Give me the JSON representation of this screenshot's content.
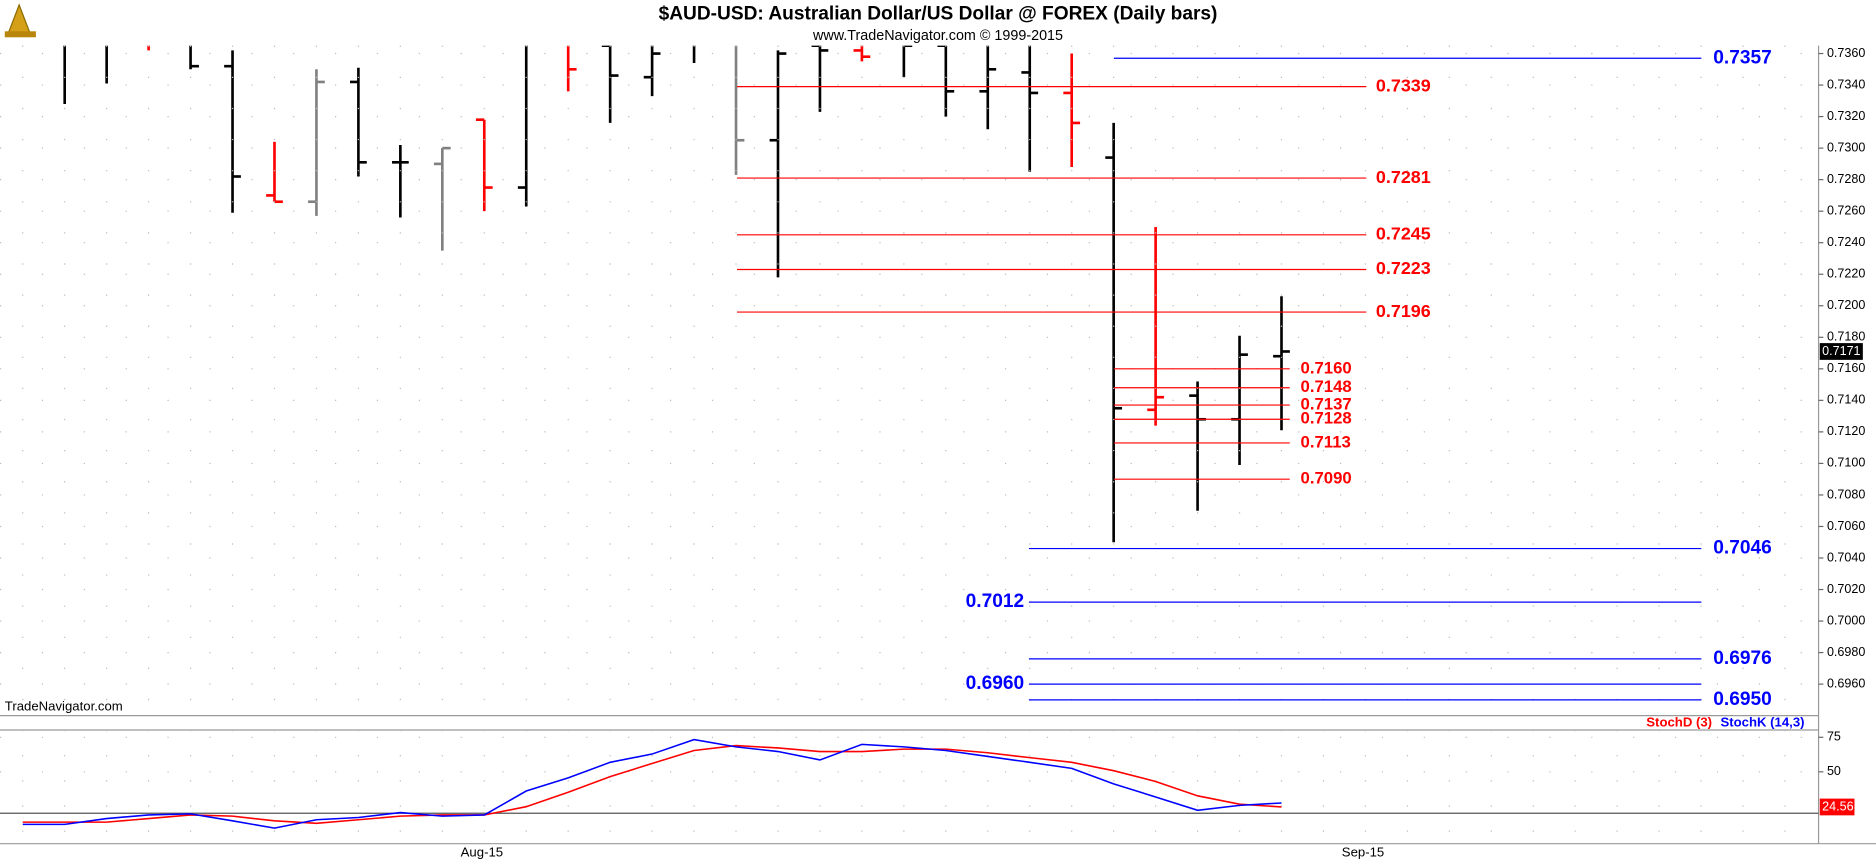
{
  "chart_data": [
    {
      "type": "ohlc",
      "title": "$AUD-USD:  Australian Dollar/US Dollar @ FOREX  (Daily bars)",
      "subtitle": "www.TradeNavigator.com © 1999-2015",
      "watermark": "TradeNavigator.com",
      "categories": [
        null,
        null,
        null,
        null,
        null,
        null,
        null,
        null,
        null,
        null,
        null,
        "Aug-15",
        null,
        null,
        null,
        null,
        null,
        null,
        null,
        null,
        null,
        null,
        null,
        null,
        null,
        null,
        null,
        null,
        null,
        null,
        null,
        null,
        "Sep-15",
        null,
        null,
        null,
        null,
        null,
        null,
        null,
        null,
        null,
        null
      ],
      "open": [
        null,
        0.7372,
        0.7375,
        0.737,
        0.737,
        0.7352,
        0.727,
        0.7266,
        0.7342,
        0.7291,
        0.729,
        0.7318,
        0.7275,
        0.7375,
        0.7365,
        0.7345,
        0.737,
        0.737,
        0.7305,
        0.7365,
        0.7362,
        0.737,
        0.7365,
        0.7336,
        0.7348,
        0.7335,
        0.7294,
        0.7134,
        0.7143,
        0.7128,
        0.7168,
        null,
        null,
        null,
        null,
        null,
        null,
        null,
        null,
        null,
        null,
        null,
        null
      ],
      "high": [
        null,
        0.738,
        0.738,
        0.7375,
        0.7378,
        0.7362,
        0.7304,
        0.735,
        0.7351,
        0.7302,
        0.73,
        0.7318,
        0.738,
        0.738,
        0.7375,
        0.7375,
        0.7375,
        0.7378,
        0.7362,
        0.7375,
        0.737,
        0.7375,
        0.7375,
        0.7372,
        0.7375,
        0.736,
        0.7316,
        0.725,
        0.7152,
        0.7181,
        0.7206,
        null,
        null,
        null,
        null,
        null,
        null,
        null,
        null,
        null,
        null,
        null,
        null
      ],
      "low": [
        null,
        0.7328,
        0.7341,
        0.7362,
        0.735,
        0.7259,
        0.7266,
        0.7257,
        0.7282,
        0.7256,
        0.7235,
        0.726,
        0.7263,
        0.7336,
        0.7316,
        0.7333,
        0.7354,
        0.7283,
        0.7218,
        0.7323,
        0.7355,
        0.7345,
        0.732,
        0.7312,
        0.7285,
        0.7288,
        0.705,
        0.7124,
        0.707,
        0.7099,
        0.7121,
        null,
        null,
        null,
        null,
        null,
        null,
        null,
        null,
        null,
        null,
        null,
        null
      ],
      "close": [
        null,
        0.737,
        0.737,
        0.7368,
        0.7352,
        0.7282,
        0.7266,
        0.7342,
        0.7291,
        0.7291,
        0.73,
        0.7275,
        0.737,
        0.735,
        0.7346,
        0.736,
        0.7368,
        0.7305,
        0.736,
        0.7362,
        0.7358,
        0.7365,
        0.7336,
        0.735,
        0.7335,
        0.7316,
        0.7135,
        0.7142,
        0.7128,
        0.7169,
        0.7171,
        null,
        null,
        null,
        null,
        null,
        null,
        null,
        null,
        null,
        null,
        null,
        null
      ],
      "colors": [
        null,
        "#000000",
        "#000000",
        "#ff0000",
        "#000000",
        "#000000",
        "#ff0000",
        "#808080",
        "#000000",
        "#000000",
        "#808080",
        "#ff0000",
        "#000000",
        "#ff0000",
        "#000000",
        "#000000",
        "#000000",
        "#808080",
        "#000000",
        "#000000",
        "#ff0000",
        "#000000",
        "#000000",
        "#000000",
        "#000000",
        "#ff0000",
        "#000000",
        "#ff0000",
        "#000000",
        "#000000",
        "#000000",
        null,
        null,
        null,
        null,
        null,
        null,
        null,
        null,
        null,
        null,
        null,
        null
      ],
      "last_price": 0.7171,
      "levels": [
        {
          "color": "#ff0000",
          "values": [
            0.7339,
            0.7281,
            0.7245,
            0.7223,
            0.7196
          ]
        },
        {
          "color": "#ff0000",
          "values": [
            {
              "value": 0.716,
              "label": "0.7160"
            },
            0.7148,
            0.7137,
            0.7128,
            0.7113,
            {
              "value": 0.709,
              "label": "0.7090"
            }
          ]
        },
        {
          "color": "#0000ff",
          "values": [
            0.7357
          ]
        },
        {
          "color": "#0000ff",
          "values": [
            0.7046,
            0.6976,
            {
              "value": 0.695,
              "label": "0.6950"
            }
          ]
        },
        {
          "color": "#0000ff",
          "values": [
            0.7012,
            {
              "value": 0.696,
              "label": "0.6960"
            }
          ]
        }
      ],
      "ylim": [
        0.694,
        0.7365
      ],
      "yticks": [
        {
          "value": 0.696,
          "label": "0.6960"
        },
        {
          "value": 0.698,
          "label": "0.6980"
        },
        {
          "value": 0.7,
          "label": "0.7000"
        },
        {
          "value": 0.702,
          "label": "0.7020"
        },
        {
          "value": 0.704,
          "label": "0.7040"
        },
        {
          "value": 0.706,
          "label": "0.7060"
        },
        {
          "value": 0.708,
          "label": "0.7080"
        },
        {
          "value": 0.71,
          "label": "0.7100"
        },
        {
          "value": 0.712,
          "label": "0.7120"
        },
        {
          "value": 0.714,
          "label": "0.7140"
        },
        {
          "value": 0.716,
          "label": "0.7160"
        },
        {
          "value": 0.718,
          "label": "0.7180"
        },
        {
          "value": 0.72,
          "label": "0.7200"
        },
        {
          "value": 0.722,
          "label": "0.7220"
        },
        {
          "value": 0.724,
          "label": "0.7240"
        },
        {
          "value": 0.726,
          "label": "0.7260"
        },
        {
          "value": 0.728,
          "label": "0.7280"
        },
        {
          "value": 0.73,
          "label": "0.7300"
        },
        {
          "value": 0.732,
          "label": "0.7320"
        },
        {
          "value": 0.734,
          "label": "0.7340"
        },
        {
          "value": 0.736,
          "label": "0.7360"
        }
      ],
      "grid": true
    },
    {
      "type": "line",
      "series": [
        {
          "name": "StochD (3)",
          "color": "#ff0000",
          "values": [
            13.6,
            13.6,
            13.6,
            16.2,
            18.8,
            17.9,
            14.5,
            12.7,
            15.3,
            17.9,
            18.8,
            18.8,
            24.8,
            35.2,
            46.5,
            56.0,
            65.5,
            69.0,
            67.3,
            64.7,
            64.7,
            66.4,
            66.4,
            63.8,
            60.3,
            56.9,
            50.8,
            43.0,
            32.6,
            26.6,
            24.56,
            null,
            null,
            null,
            null,
            null,
            null,
            null,
            null,
            null,
            null,
            null,
            null
          ]
        },
        {
          "name": "StochK (14,3)",
          "color": "#0000ff",
          "values": [
            11.9,
            11.9,
            16.2,
            18.8,
            19.6,
            14.5,
            9.3,
            15.3,
            17.0,
            20.5,
            17.9,
            18.8,
            36.1,
            45.6,
            56.9,
            62.9,
            73.3,
            68.1,
            64.7,
            58.6,
            69.9,
            68.1,
            65.5,
            61.1,
            56.9,
            52.5,
            41.3,
            31.8,
            22.2,
            25.7,
            27.4,
            null,
            null,
            null,
            null,
            null,
            null,
            null,
            null,
            null,
            null,
            null,
            null
          ]
        }
      ],
      "ref_line": 20,
      "ylim": [
        -2,
        82
      ],
      "yticks": [
        50,
        75
      ],
      "grid": true
    }
  ]
}
